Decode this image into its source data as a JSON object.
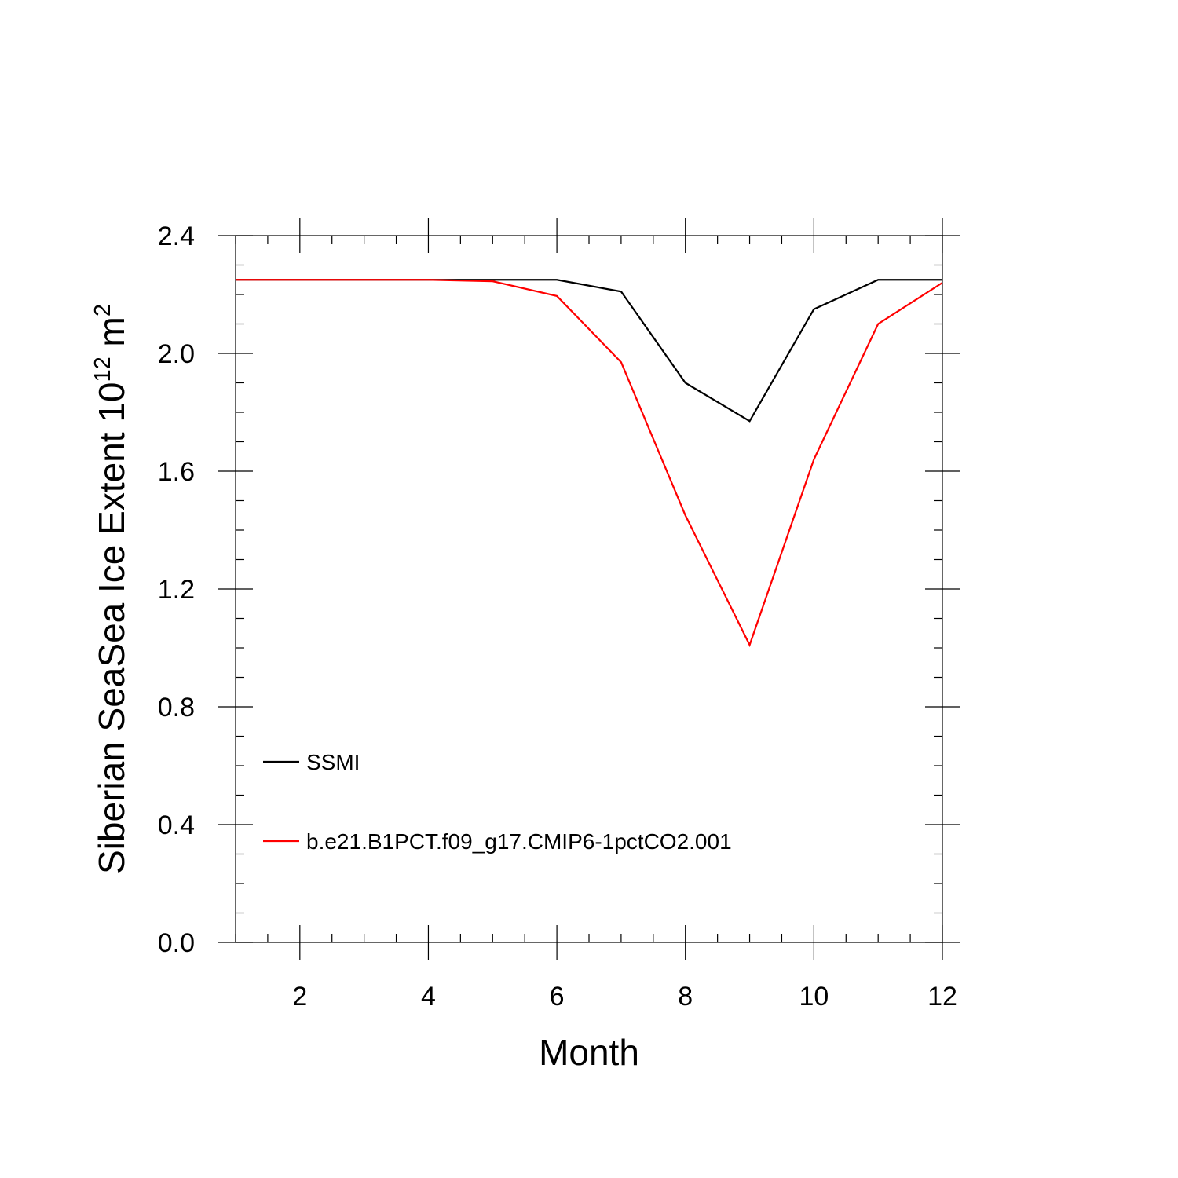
{
  "chart_data": {
    "type": "line",
    "title": "",
    "xlabel": "Month",
    "ylabel": {
      "text": "Siberian SeaSea Ice Extent 10",
      "sup1": "12",
      "unit": " m",
      "sup2": "2"
    },
    "xlim": [
      1,
      12
    ],
    "ylim": [
      0,
      2.4
    ],
    "x_ticks": [
      "2",
      "4",
      "6",
      "8",
      "10",
      "12"
    ],
    "y_ticks": [
      "0.0",
      "0.4",
      "0.8",
      "1.2",
      "1.6",
      "2.0",
      "2.4"
    ],
    "x": [
      1,
      2,
      3,
      4,
      5,
      6,
      7,
      8,
      9,
      10,
      11,
      12
    ],
    "series": [
      {
        "name": "SSMI",
        "color": "#000000",
        "values": [
          2.25,
          2.25,
          2.25,
          2.25,
          2.25,
          2.25,
          2.21,
          1.9,
          1.77,
          2.15,
          2.25,
          2.25
        ]
      },
      {
        "name": "b.e21.B1PCT.f09_g17.CMIP6-1pctCO2.001",
        "color": "#ff0000",
        "values": [
          2.25,
          2.25,
          2.25,
          2.25,
          2.245,
          2.195,
          1.97,
          1.45,
          1.01,
          1.64,
          2.1,
          2.24
        ]
      }
    ],
    "legend": "bottom-left",
    "grid": false
  }
}
